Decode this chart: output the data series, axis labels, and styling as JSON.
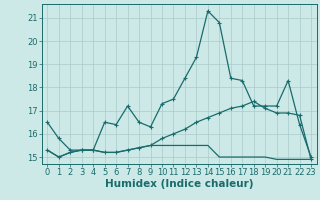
{
  "xlabel": "Humidex (Indice chaleur)",
  "xlim": [
    -0.5,
    23.5
  ],
  "ylim": [
    14.7,
    21.6
  ],
  "yticks": [
    15,
    16,
    17,
    18,
    19,
    20,
    21
  ],
  "xticks": [
    0,
    1,
    2,
    3,
    4,
    5,
    6,
    7,
    8,
    9,
    10,
    11,
    12,
    13,
    14,
    15,
    16,
    17,
    18,
    19,
    20,
    21,
    22,
    23
  ],
  "bg_color": "#cce9e8",
  "grid_color": "#aacccc",
  "line_color": "#1a6b6b",
  "line1_y": [
    16.5,
    15.8,
    15.3,
    15.3,
    15.3,
    16.5,
    16.4,
    17.2,
    16.5,
    16.3,
    17.3,
    17.5,
    18.4,
    19.3,
    21.3,
    20.8,
    18.4,
    18.3,
    17.2,
    17.2,
    17.2,
    18.3,
    16.4,
    15.0
  ],
  "line2_y": [
    15.3,
    15.0,
    15.2,
    15.3,
    15.3,
    15.2,
    15.2,
    15.3,
    15.4,
    15.5,
    15.8,
    16.0,
    16.2,
    16.5,
    16.7,
    16.9,
    17.1,
    17.2,
    17.4,
    17.1,
    16.9,
    16.9,
    16.8,
    14.9
  ],
  "line3_y": [
    15.3,
    15.0,
    15.2,
    15.3,
    15.3,
    15.2,
    15.2,
    15.3,
    15.4,
    15.5,
    15.5,
    15.5,
    15.5,
    15.5,
    15.5,
    15.0,
    15.0,
    15.0,
    15.0,
    15.0,
    14.9,
    14.9,
    14.9,
    14.9
  ],
  "fontsize_label": 7.5,
  "fontsize_tick": 6.0
}
